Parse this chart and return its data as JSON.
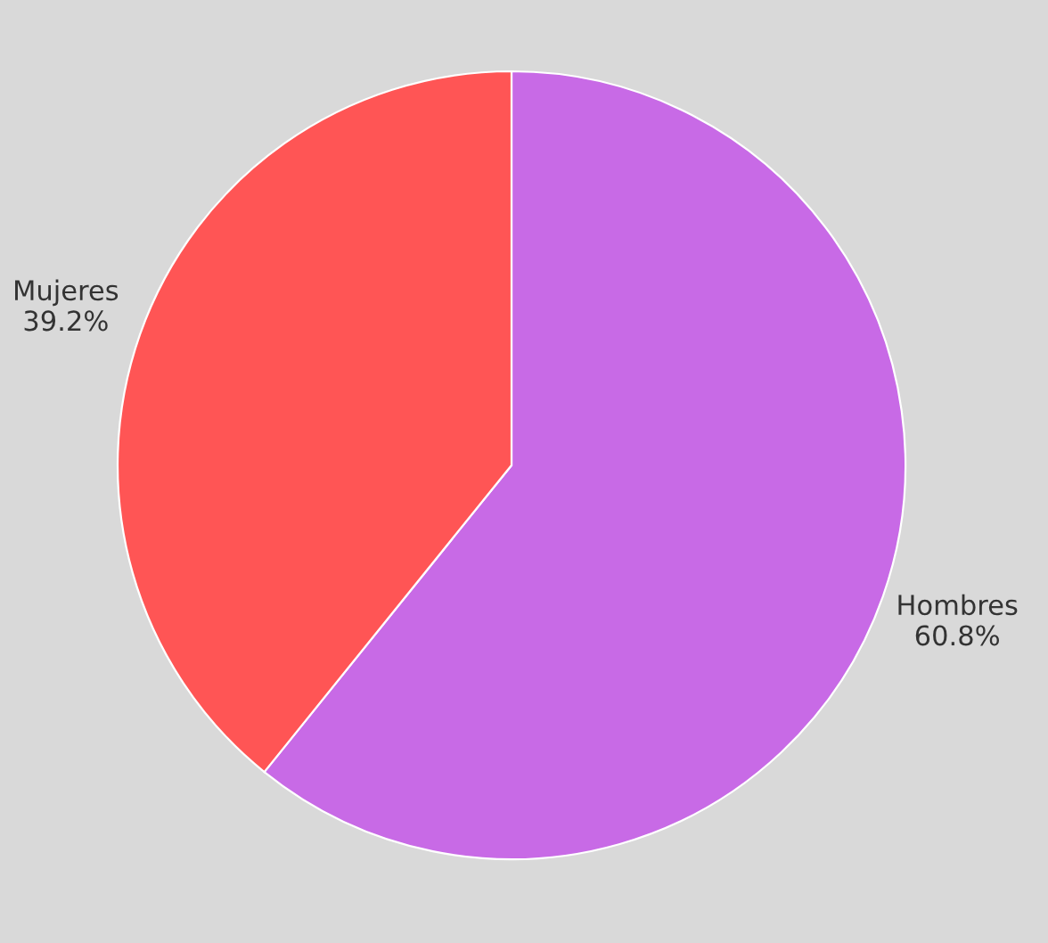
{
  "chart_data": {
    "type": "pie",
    "categories": [
      "Hombres",
      "Mujeres"
    ],
    "values": [
      60.8,
      39.2
    ],
    "colors": [
      "#c86ae6",
      "#ff5555"
    ],
    "value_labels": [
      "60.8%",
      "39.2%"
    ]
  }
}
